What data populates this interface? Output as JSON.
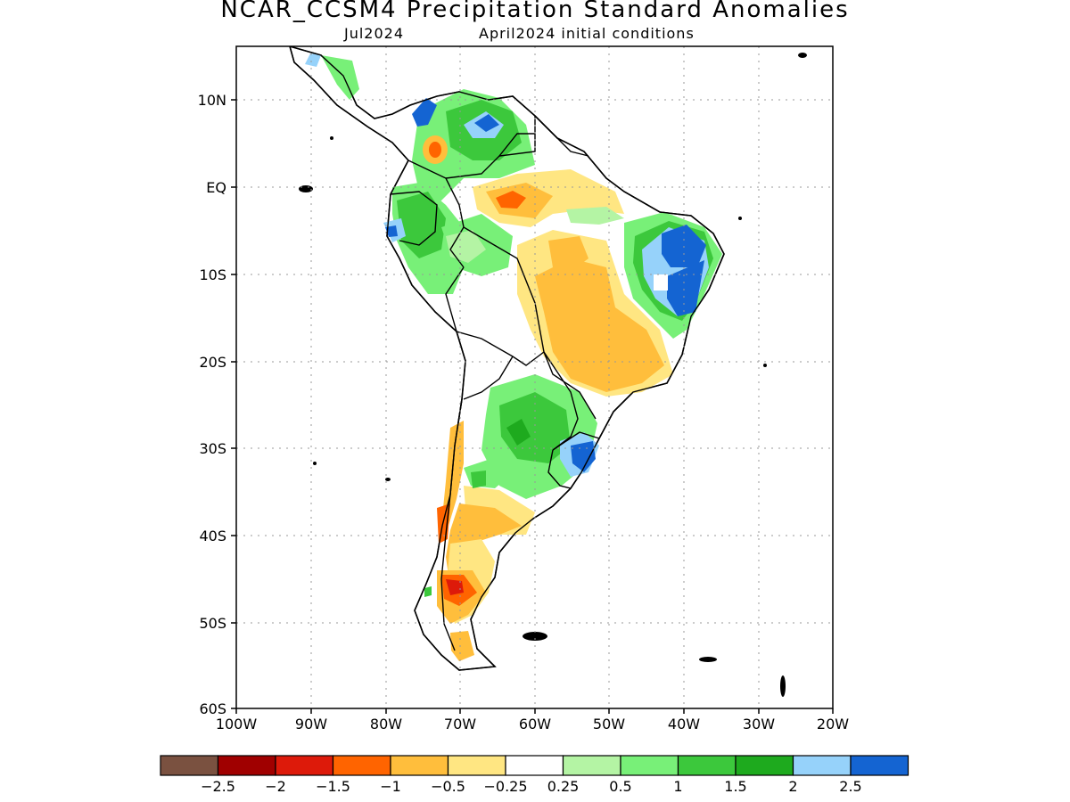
{
  "header": {
    "title": "NCAR_CCSM4 Precipitation Standard Anomalies",
    "valid_month": "Jul2024",
    "init": "April2024 initial conditions"
  },
  "map": {
    "lat_labels": [
      "10N",
      "EQ",
      "10S",
      "20S",
      "30S",
      "40S",
      "50S",
      "60S"
    ],
    "lon_labels": [
      "100W",
      "90W",
      "80W",
      "70W",
      "60W",
      "50W",
      "40W",
      "30W",
      "20W"
    ],
    "extent": {
      "lon_min": -100,
      "lon_max": -20,
      "lat_min": -60,
      "lat_max": 16
    },
    "grid": "dotted"
  },
  "colorbar": {
    "colors": [
      "#7a5140",
      "#a00000",
      "#dd1a0a",
      "#ff6400",
      "#ffbe3c",
      "#ffe682",
      "#ffffff",
      "#b4f4a4",
      "#78f078",
      "#3cc83c",
      "#1eaa1e",
      "#96d2fa",
      "#1464d2"
    ],
    "labels": [
      "−2.5",
      "−2",
      "−1.5",
      "−1",
      "−0.5",
      "−0.25",
      "0.25",
      "0.5",
      "1",
      "1.5",
      "2",
      "2.5"
    ]
  }
}
